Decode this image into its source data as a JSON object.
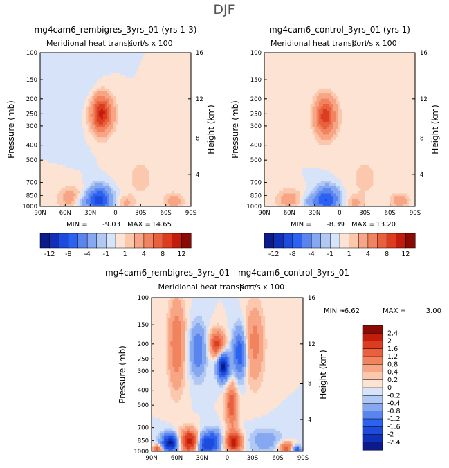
{
  "figure": {
    "title": "DJF"
  },
  "palettes": {
    "main": [
      "#0b1b8a",
      "#1030b8",
      "#1d4bdc",
      "#2d62f0",
      "#5a85ee",
      "#86a8f0",
      "#b2c8f4",
      "#d6e3f8",
      "#fde3d3",
      "#fbc8ae",
      "#f7a584",
      "#f1835e",
      "#e8603d",
      "#dc3c20",
      "#c01d0c",
      "#8a0a04"
    ],
    "diff": [
      "#0b1b8a",
      "#1030b8",
      "#1d4bdc",
      "#2d62f0",
      "#5a85ee",
      "#86a8f0",
      "#b2c8f4",
      "#d6e3f8",
      "#fde3d3",
      "#fbc8ae",
      "#f7a584",
      "#f1835e",
      "#e8603d",
      "#dc3c20",
      "#c01d0c",
      "#8a0a04"
    ]
  },
  "chart_data": [
    {
      "type": "heatmap",
      "id": "left",
      "title": "mg4cam6_rembigres_3yrs_01 (yrs 1-3)",
      "subtitle": "Meridional heat transport",
      "units": "K m/s x 100",
      "ylabel": "Pressure (mb)",
      "ylabel_right": "Height (km)",
      "x_ticks": [
        "90N",
        "60N",
        "30N",
        "0",
        "30S",
        "60S",
        "90S"
      ],
      "x_values": [
        90,
        60,
        30,
        0,
        -30,
        -60,
        -90
      ],
      "y_ticks": [
        100,
        150,
        200,
        250,
        300,
        400,
        500,
        700,
        850,
        1000
      ],
      "height_ticks": [
        16,
        12,
        8,
        4
      ],
      "xlim": [
        90,
        -90
      ],
      "ylim": [
        100,
        1000
      ],
      "min_label": "MIN =",
      "min_value": "-9.03",
      "max_label": "MAX =",
      "max_value": "14.65",
      "colorbar_labels": [
        "-12",
        "-8",
        "-4",
        "-1",
        "1",
        "4",
        "8",
        "12"
      ],
      "features": [
        {
          "lat": 17,
          "p": 250,
          "value": 11,
          "slat": 9,
          "sp": 55
        },
        {
          "lat": 19,
          "p": 900,
          "value": -9,
          "slat": 10,
          "sp": 130
        },
        {
          "lat": 53,
          "p": 880,
          "value": 3,
          "slat": 12,
          "sp": 110
        },
        {
          "lat": 38,
          "p": 930,
          "value": -3,
          "slat": 8,
          "sp": 70
        },
        {
          "lat": -12,
          "p": 950,
          "value": 2,
          "slat": 7,
          "sp": 70
        },
        {
          "lat": -70,
          "p": 920,
          "value": 3,
          "slat": 8,
          "sp": 80
        },
        {
          "lat": -30,
          "p": 650,
          "value": 1.2,
          "slat": 18,
          "sp": 250
        },
        {
          "lat": 30,
          "p": 200,
          "value": -0.8,
          "slat": 12,
          "sp": 90
        }
      ]
    },
    {
      "type": "heatmap",
      "id": "right",
      "title": "mg4cam6_control_3yrs_01 (yrs 1)",
      "subtitle": "Meridional heat transport",
      "units": "K m/s x 100",
      "ylabel": "Pressure (mb)",
      "ylabel_right": "Height (km)",
      "x_ticks": [
        "90N",
        "60N",
        "30N",
        "0",
        "30S",
        "60S",
        "90S"
      ],
      "x_values": [
        90,
        60,
        30,
        0,
        -30,
        -60,
        -90
      ],
      "y_ticks": [
        100,
        150,
        200,
        250,
        300,
        400,
        500,
        700,
        850,
        1000
      ],
      "height_ticks": [
        16,
        12,
        8,
        4
      ],
      "xlim": [
        90,
        -90
      ],
      "ylim": [
        100,
        1000
      ],
      "min_label": "MIN =",
      "min_value": "-8.39",
      "max_label": "MAX =",
      "max_value": "13.20",
      "colorbar_labels": [
        "-12",
        "-8",
        "-4",
        "-1",
        "1",
        "4",
        "8",
        "12"
      ],
      "features": [
        {
          "lat": 17,
          "p": 260,
          "value": 9,
          "slat": 9,
          "sp": 60
        },
        {
          "lat": 15,
          "p": 900,
          "value": -8,
          "slat": 10,
          "sp": 130
        },
        {
          "lat": 60,
          "p": 900,
          "value": 3,
          "slat": 12,
          "sp": 100
        },
        {
          "lat": 35,
          "p": 930,
          "value": -3,
          "slat": 8,
          "sp": 70
        },
        {
          "lat": -18,
          "p": 950,
          "value": 2,
          "slat": 7,
          "sp": 70
        },
        {
          "lat": -72,
          "p": 920,
          "value": 3,
          "slat": 8,
          "sp": 80
        },
        {
          "lat": -30,
          "p": 650,
          "value": 1.2,
          "slat": 18,
          "sp": 250
        }
      ]
    },
    {
      "type": "heatmap",
      "id": "diff",
      "title": "mg4cam6_rembigres_3yrs_01 - mg4cam6_control_3yrs_01",
      "subtitle": "Meridional heat transport",
      "units": "K m/s x 100",
      "ylabel": "Pressure (mb)",
      "ylabel_right": "Height (km)",
      "x_ticks": [
        "90N",
        "60N",
        "30N",
        "0",
        "30S",
        "60S",
        "90S"
      ],
      "x_values": [
        90,
        60,
        30,
        0,
        -30,
        -60,
        -90
      ],
      "y_ticks": [
        100,
        150,
        200,
        250,
        300,
        400,
        500,
        700,
        850,
        1000
      ],
      "height_ticks": [
        16,
        12,
        8,
        4
      ],
      "xlim": [
        90,
        -90
      ],
      "ylim": [
        100,
        1000
      ],
      "min_label": "MIN =",
      "min_value": "-6.62",
      "max_label": "MAX =",
      "max_value": "3.00",
      "colorbar_labels": [
        "2.4",
        "2",
        "1.6",
        "1.2",
        "0.8",
        "0.4",
        "0.2",
        "0",
        "-0.2",
        "-0.4",
        "-0.8",
        "-1.2",
        "-1.6",
        "-2",
        "-2.4"
      ],
      "features": [
        {
          "lat": 67,
          "p": 880,
          "value": -2.6,
          "slat": 8,
          "sp": 90
        },
        {
          "lat": 45,
          "p": 860,
          "value": 2.4,
          "slat": 9,
          "sp": 110
        },
        {
          "lat": 28,
          "p": 900,
          "value": -2.0,
          "slat": 7,
          "sp": 120
        },
        {
          "lat": 15,
          "p": 860,
          "value": -1.4,
          "slat": 6,
          "sp": 110
        },
        {
          "lat": -8,
          "p": 870,
          "value": 2.2,
          "slat": 7,
          "sp": 100
        },
        {
          "lat": -5,
          "p": 500,
          "value": 1.6,
          "slat": 5,
          "sp": 130
        },
        {
          "lat": 5,
          "p": 280,
          "value": -2.6,
          "slat": 5,
          "sp": 45
        },
        {
          "lat": 12,
          "p": 200,
          "value": 1.8,
          "slat": 6,
          "sp": 30
        },
        {
          "lat": 35,
          "p": 220,
          "value": -1.2,
          "slat": 7,
          "sp": 70
        },
        {
          "lat": -15,
          "p": 230,
          "value": -1.6,
          "slat": 6,
          "sp": 70
        },
        {
          "lat": -32,
          "p": 200,
          "value": 1.0,
          "slat": 8,
          "sp": 100
        },
        {
          "lat": 60,
          "p": 200,
          "value": 1.2,
          "slat": 7,
          "sp": 120
        },
        {
          "lat": -45,
          "p": 850,
          "value": -0.6,
          "slat": 15,
          "sp": 120
        },
        {
          "lat": -70,
          "p": 950,
          "value": 1.6,
          "slat": 6,
          "sp": 60
        },
        {
          "lat": -82,
          "p": 970,
          "value": -1.8,
          "slat": 4,
          "sp": 40
        },
        {
          "lat": 83,
          "p": 960,
          "value": 1.8,
          "slat": 4,
          "sp": 40
        }
      ]
    }
  ]
}
